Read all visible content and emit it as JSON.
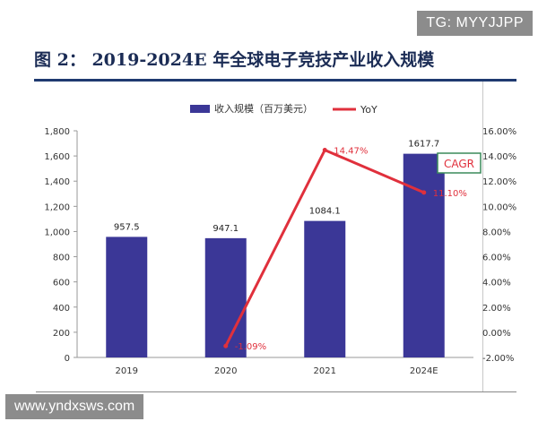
{
  "header": {
    "figure_title": "图 2：  2019-2024E 年全球电子竞技产业收入规模"
  },
  "watermarks": {
    "top_right": "TG: MYYJJPP",
    "bottom_left": "www.yndxsws.com"
  },
  "colors": {
    "bar": "#3b3797",
    "line": "#e0303c",
    "title": "#1b2c55",
    "annotation_border": "#3a8a5a"
  },
  "chart_data": {
    "type": "bar",
    "categories": [
      "2019",
      "2020",
      "2021",
      "2024E"
    ],
    "series": [
      {
        "name": "收入规模（百万美元）",
        "type": "bar",
        "axis": "left",
        "values": [
          957.5,
          947.1,
          1084.1,
          1617.7
        ],
        "labels": [
          "957.5",
          "947.1",
          "1084.1",
          "1617.7"
        ]
      },
      {
        "name": "YoY",
        "type": "line",
        "axis": "right",
        "values": [
          null,
          -1.09,
          14.47,
          11.1
        ],
        "labels": [
          "",
          "-1.09%",
          "14.47%",
          "11.10%"
        ]
      }
    ],
    "y_left": {
      "min": 0,
      "max": 1800,
      "ticks": [
        "0",
        "200",
        "400",
        "600",
        "800",
        "1,000",
        "1,200",
        "1,400",
        "1,600",
        "1,800"
      ]
    },
    "y_right": {
      "min": -2,
      "max": 16,
      "ticks": [
        "-2.00%",
        "0.00%",
        "2.00%",
        "4.00%",
        "6.00%",
        "8.00%",
        "10.00%",
        "12.00%",
        "14.00%",
        "16.00%"
      ]
    },
    "annotation": "CAGR",
    "legend_position": "top-center",
    "grid": false
  }
}
